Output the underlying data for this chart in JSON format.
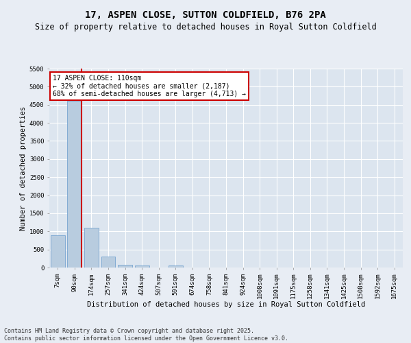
{
  "title": "17, ASPEN CLOSE, SUTTON COLDFIELD, B76 2PA",
  "subtitle": "Size of property relative to detached houses in Royal Sutton Coldfield",
  "xlabel": "Distribution of detached houses by size in Royal Sutton Coldfield",
  "ylabel": "Number of detached properties",
  "categories": [
    "7sqm",
    "90sqm",
    "174sqm",
    "257sqm",
    "341sqm",
    "424sqm",
    "507sqm",
    "591sqm",
    "674sqm",
    "758sqm",
    "841sqm",
    "924sqm",
    "1008sqm",
    "1091sqm",
    "1175sqm",
    "1258sqm",
    "1341sqm",
    "1425sqm",
    "1508sqm",
    "1592sqm",
    "1675sqm"
  ],
  "values": [
    900,
    4600,
    1100,
    300,
    75,
    60,
    0,
    50,
    0,
    0,
    0,
    0,
    0,
    0,
    0,
    0,
    0,
    0,
    0,
    0,
    0
  ],
  "bar_color": "#b8ccdf",
  "bar_edge_color": "#6699cc",
  "vline_color": "#cc0000",
  "annotation_text": "17 ASPEN CLOSE: 110sqm\n← 32% of detached houses are smaller (2,187)\n68% of semi-detached houses are larger (4,713) →",
  "annotation_box_color": "#cc0000",
  "ylim": [
    0,
    5500
  ],
  "yticks": [
    0,
    500,
    1000,
    1500,
    2000,
    2500,
    3000,
    3500,
    4000,
    4500,
    5000,
    5500
  ],
  "bg_color": "#e8edf4",
  "plot_bg_color": "#dce5ef",
  "grid_color": "#ffffff",
  "footer": "Contains HM Land Registry data © Crown copyright and database right 2025.\nContains public sector information licensed under the Open Government Licence v3.0.",
  "title_fontsize": 10,
  "subtitle_fontsize": 8.5,
  "ylabel_fontsize": 7.5,
  "xlabel_fontsize": 7.5,
  "tick_fontsize": 6.5,
  "annotation_fontsize": 7,
  "footer_fontsize": 6
}
